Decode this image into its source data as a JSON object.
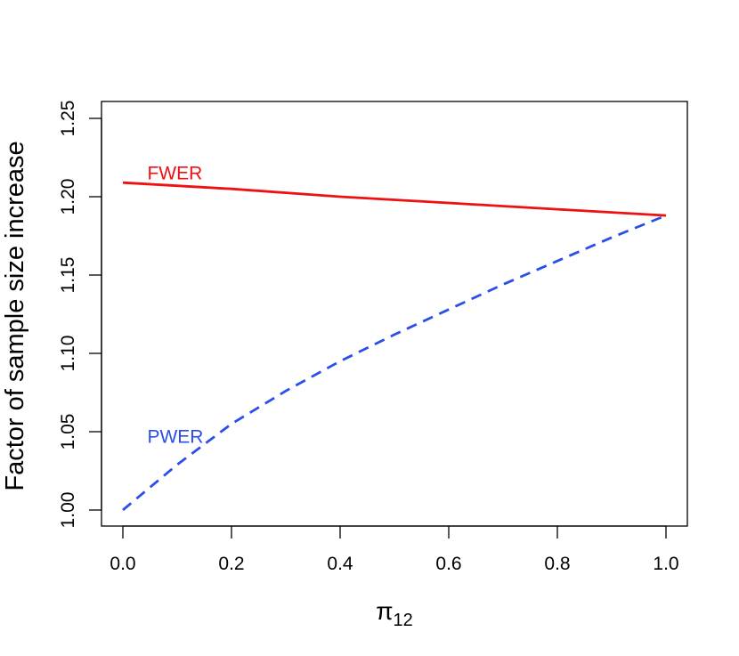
{
  "chart_data": {
    "type": "line",
    "title": "",
    "xlabel": "π",
    "xlabel_subscript": "12",
    "ylabel": "Factor of sample size increase",
    "xlim": [
      0.0,
      1.0
    ],
    "ylim": [
      1.0,
      1.25
    ],
    "x_ticks": [
      "0.0",
      "0.2",
      "0.4",
      "0.6",
      "0.8",
      "1.0"
    ],
    "y_ticks": [
      "1.00",
      "1.05",
      "1.10",
      "1.15",
      "1.20",
      "1.25"
    ],
    "grid": false,
    "series": [
      {
        "name": "FWER",
        "color": "#ee1111",
        "line_style": "solid",
        "x": [
          0.0,
          0.2,
          0.4,
          0.6,
          0.8,
          1.0
        ],
        "y": [
          1.209,
          1.205,
          1.2,
          1.196,
          1.192,
          1.188
        ]
      },
      {
        "name": "PWER",
        "color": "#2a4fe8",
        "line_style": "dashed",
        "x": [
          0.0,
          0.1,
          0.2,
          0.3,
          0.4,
          0.5,
          0.6,
          0.7,
          0.8,
          0.9,
          1.0
        ],
        "y": [
          1.0,
          1.029,
          1.055,
          1.076,
          1.095,
          1.112,
          1.128,
          1.144,
          1.159,
          1.174,
          1.188
        ]
      }
    ]
  }
}
